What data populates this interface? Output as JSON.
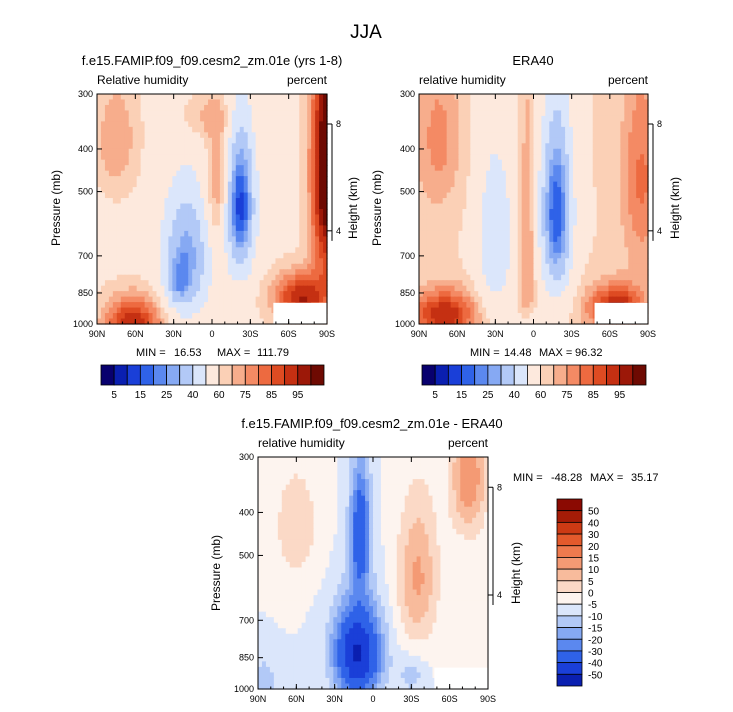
{
  "figure_title": "JJA",
  "palettes": {
    "rh": [
      "#08006e",
      "#0a1fb0",
      "#1a3fd8",
      "#2f62e8",
      "#5b88ef",
      "#86a9f3",
      "#b2c9f7",
      "#dbe6fb",
      "#fde9dd",
      "#fbd0b6",
      "#f7ad8c",
      "#f48a64",
      "#ed6a40",
      "#de4b22",
      "#c53012",
      "#9c1808",
      "#6e0a02"
    ],
    "diff": [
      "#08006e",
      "#0a1fb0",
      "#1a3fd8",
      "#2f62e8",
      "#5b88ef",
      "#86a9f3",
      "#b2c9f7",
      "#dbe6fb",
      "#fdf4ef",
      "#fbd9c6",
      "#f8bb9c",
      "#f49a74",
      "#ee7a4e",
      "#e35a2c",
      "#cc3a14",
      "#a51c07",
      "#8b0a02"
    ],
    "mask": "#ffffff"
  },
  "chart_data": [
    {
      "type": "heatmap",
      "id": "model",
      "title": "f.e15.FAMIP.f09_f09.cesm2_zm.01e (yrs 1-8)",
      "left_label": "Relative humidity",
      "right_label": "percent",
      "xlabel": "",
      "ylabel": "Pressure (mb)",
      "y2label": "Height (km)",
      "x_ticks": [
        "90N",
        "60N",
        "30N",
        "0",
        "30S",
        "60S",
        "90S"
      ],
      "y_ticks": [
        300,
        400,
        500,
        700,
        850,
        1000
      ],
      "y2_ticks": [
        8,
        4
      ],
      "min_label": "MIN =",
      "min_value": "16.53",
      "max_label": "MAX =",
      "max_value": "111.79",
      "colorbar_labels": [
        "5",
        "15",
        "25",
        "40",
        "60",
        "75",
        "85",
        "95"
      ],
      "field": "model"
    },
    {
      "type": "heatmap",
      "id": "era40",
      "title": "ERA40",
      "left_label": "relative humidity",
      "right_label": "percent",
      "xlabel": "",
      "ylabel": "Pressure (mb)",
      "y2label": "Height (km)",
      "x_ticks": [
        "90N",
        "60N",
        "30N",
        "0",
        "30S",
        "60S",
        "90S"
      ],
      "y_ticks": [
        300,
        400,
        500,
        700,
        850,
        1000
      ],
      "y2_ticks": [
        8,
        4
      ],
      "min_label": "MIN =",
      "min_value": "14.48",
      "max_label": "MAX =",
      "max_value": "96.32",
      "colorbar_labels": [
        "5",
        "15",
        "25",
        "40",
        "60",
        "75",
        "85",
        "95"
      ],
      "field": "era"
    },
    {
      "type": "heatmap",
      "id": "diff",
      "title": "f.e15.FAMIP.f09_f09.cesm2_zm.01e - ERA40",
      "left_label": "relative humidity",
      "right_label": "percent",
      "xlabel": "",
      "ylabel": "Pressure (mb)",
      "y2label": "Height (km)",
      "x_ticks": [
        "90N",
        "60N",
        "30N",
        "0",
        "30S",
        "60S",
        "90S"
      ],
      "y_ticks": [
        300,
        400,
        500,
        700,
        850,
        1000
      ],
      "y2_ticks": [
        8,
        4
      ],
      "min_label": "MIN =",
      "min_value": "-48.28",
      "max_label": "MAX =",
      "max_value": "35.17",
      "colorbar_labels": [
        "50",
        "40",
        "30",
        "20",
        "15",
        "10",
        "5",
        "0",
        "-5",
        "-10",
        "-15",
        "-20",
        "-30",
        "-40",
        "-50"
      ],
      "field": "diff"
    }
  ]
}
